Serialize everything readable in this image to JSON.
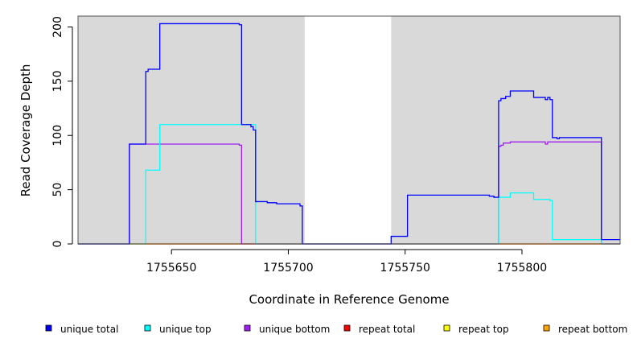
{
  "chart_data": {
    "type": "line",
    "title": "",
    "xlabel": "Coordinate in Reference Genome",
    "ylabel": "Read Coverage Depth",
    "xlim": [
      1755610,
      1755842
    ],
    "ylim": [
      0,
      210
    ],
    "x_ticks": [
      1755650,
      1755700,
      1755750,
      1755800
    ],
    "x_tick_labels": [
      "1755650",
      "1755700",
      "1755750",
      "1755800"
    ],
    "y_ticks": [
      0,
      50,
      100,
      150,
      200
    ],
    "y_tick_labels": [
      "0",
      "50",
      "100",
      "150",
      "200"
    ],
    "background_color": "#d9d9d9",
    "gap_regions": [
      [
        1755707,
        1755744
      ]
    ],
    "legend_position": "bottom",
    "series": [
      {
        "name": "unique total",
        "color": "#0000ff",
        "points": [
          [
            1755610,
            0
          ],
          [
            1755632,
            0
          ],
          [
            1755632,
            92
          ],
          [
            1755639,
            92
          ],
          [
            1755639,
            159
          ],
          [
            1755640,
            159
          ],
          [
            1755640,
            161
          ],
          [
            1755645,
            161
          ],
          [
            1755645,
            203
          ],
          [
            1755679,
            203
          ],
          [
            1755679,
            202
          ],
          [
            1755680,
            202
          ],
          [
            1755680,
            110
          ],
          [
            1755684,
            110
          ],
          [
            1755684,
            108
          ],
          [
            1755685,
            108
          ],
          [
            1755685,
            105
          ],
          [
            1755686,
            105
          ],
          [
            1755686,
            39
          ],
          [
            1755691,
            39
          ],
          [
            1755691,
            38
          ],
          [
            1755695,
            38
          ],
          [
            1755695,
            37
          ],
          [
            1755705,
            37
          ],
          [
            1755705,
            35
          ],
          [
            1755706,
            35
          ],
          [
            1755706,
            0
          ],
          [
            1755744,
            0
          ],
          [
            1755744,
            7
          ],
          [
            1755751,
            7
          ],
          [
            1755751,
            45
          ],
          [
            1755786,
            45
          ],
          [
            1755786,
            44
          ],
          [
            1755788,
            44
          ],
          [
            1755788,
            43
          ],
          [
            1755790,
            43
          ],
          [
            1755790,
            132
          ],
          [
            1755791,
            132
          ],
          [
            1755791,
            134
          ],
          [
            1755793,
            134
          ],
          [
            1755793,
            136
          ],
          [
            1755795,
            136
          ],
          [
            1755795,
            141
          ],
          [
            1755805,
            141
          ],
          [
            1755805,
            135
          ],
          [
            1755810,
            135
          ],
          [
            1755810,
            133
          ],
          [
            1755811,
            133
          ],
          [
            1755811,
            135
          ],
          [
            1755812,
            135
          ],
          [
            1755812,
            133
          ],
          [
            1755813,
            133
          ],
          [
            1755813,
            98
          ],
          [
            1755815,
            98
          ],
          [
            1755815,
            97
          ],
          [
            1755816,
            97
          ],
          [
            1755816,
            98
          ],
          [
            1755834,
            98
          ],
          [
            1755834,
            4
          ],
          [
            1755842,
            4
          ]
        ]
      },
      {
        "name": "unique top",
        "color": "#00ffff",
        "points": [
          [
            1755610,
            0
          ],
          [
            1755639,
            0
          ],
          [
            1755639,
            68
          ],
          [
            1755645,
            68
          ],
          [
            1755645,
            110
          ],
          [
            1755686,
            110
          ],
          [
            1755686,
            0
          ],
          [
            1755790,
            0
          ],
          [
            1755790,
            43
          ],
          [
            1755795,
            43
          ],
          [
            1755795,
            47
          ],
          [
            1755805,
            47
          ],
          [
            1755805,
            41
          ],
          [
            1755812,
            41
          ],
          [
            1755812,
            40
          ],
          [
            1755813,
            40
          ],
          [
            1755813,
            4
          ],
          [
            1755834,
            4
          ],
          [
            1755834,
            0
          ],
          [
            1755842,
            0
          ]
        ]
      },
      {
        "name": "unique bottom",
        "color": "#a020f0",
        "points": [
          [
            1755610,
            0
          ],
          [
            1755632,
            0
          ],
          [
            1755632,
            92
          ],
          [
            1755679,
            92
          ],
          [
            1755679,
            91
          ],
          [
            1755680,
            91
          ],
          [
            1755680,
            0
          ],
          [
            1755790,
            0
          ],
          [
            1755790,
            90
          ],
          [
            1755791,
            90
          ],
          [
            1755791,
            91
          ],
          [
            1755792,
            91
          ],
          [
            1755792,
            93
          ],
          [
            1755795,
            93
          ],
          [
            1755795,
            94
          ],
          [
            1755810,
            94
          ],
          [
            1755810,
            92
          ],
          [
            1755811,
            92
          ],
          [
            1755811,
            94
          ],
          [
            1755834,
            94
          ],
          [
            1755834,
            0
          ],
          [
            1755842,
            0
          ]
        ]
      },
      {
        "name": "repeat total",
        "color": "#ff0000",
        "points": [
          [
            1755610,
            0
          ],
          [
            1755842,
            0
          ]
        ]
      },
      {
        "name": "repeat top",
        "color": "#ffff00",
        "points": [
          [
            1755610,
            0
          ],
          [
            1755842,
            0
          ]
        ]
      },
      {
        "name": "repeat bottom",
        "color": "#ffa500",
        "points": [
          [
            1755610,
            0
          ],
          [
            1755842,
            0
          ]
        ]
      }
    ]
  }
}
